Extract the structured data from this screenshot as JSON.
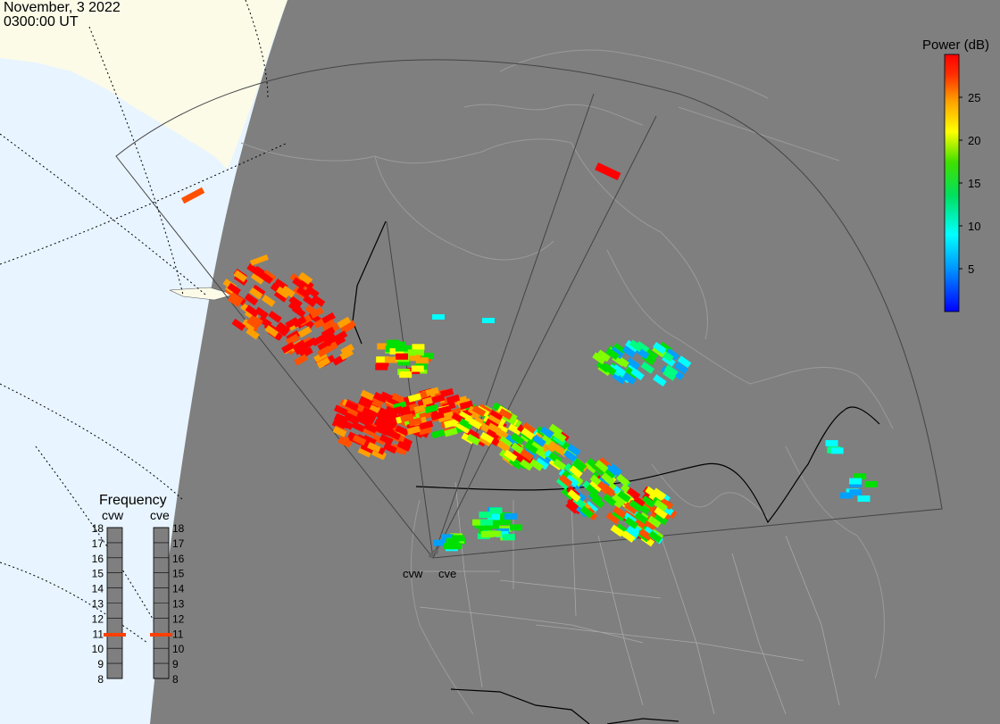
{
  "header": {
    "date": "November, 3 2022",
    "time": "0300:00 UT"
  },
  "radars": [
    {
      "code": "cvw",
      "label": "cvw"
    },
    {
      "code": "cve",
      "label": "cve"
    }
  ],
  "power_scale": {
    "title": "Power (dB)",
    "min": 0,
    "max": 30,
    "ticks": [
      {
        "value": 5,
        "label": "5"
      },
      {
        "value": 10,
        "label": "10"
      },
      {
        "value": 15,
        "label": "15"
      },
      {
        "value": 20,
        "label": "20"
      },
      {
        "value": 25,
        "label": "25"
      }
    ],
    "colors": [
      "#0000ff",
      "#00a0ff",
      "#00ffff",
      "#00ff80",
      "#00e000",
      "#80ff00",
      "#ffff00",
      "#ffa000",
      "#ff5000",
      "#ff0000"
    ]
  },
  "frequency": {
    "title": "Frequency",
    "ticks": [
      "18",
      "17",
      "16",
      "15",
      "14",
      "13",
      "12",
      "11",
      "10",
      "9",
      "8"
    ],
    "min": 8,
    "max": 18,
    "cvw_value": 10.9,
    "cve_value": 10.9,
    "marker_color": "#ff4000"
  }
}
